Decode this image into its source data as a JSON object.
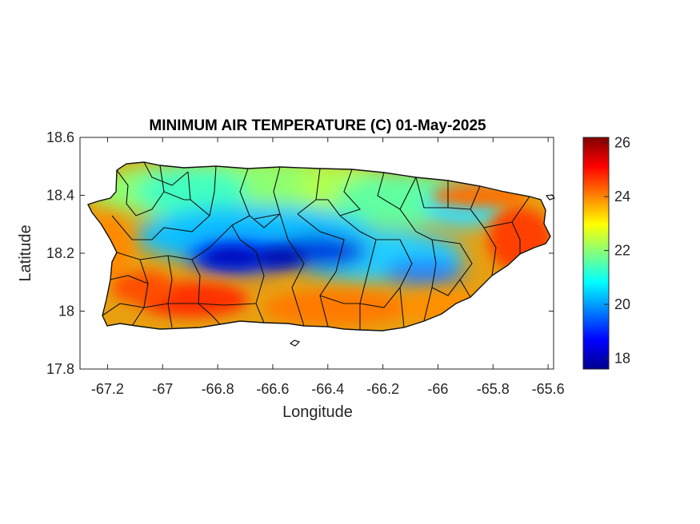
{
  "map": {
    "title": "MINIMUM AIR TEMPERATURE (C) 01-May-2025",
    "xlabel": "Longitude",
    "ylabel": "Latitude",
    "xlim": [
      -67.3,
      -65.58
    ],
    "ylim": [
      17.8,
      18.6
    ],
    "xticks": [
      -67.2,
      -67,
      -66.8,
      -66.6,
      -66.4,
      -66.2,
      -66,
      -65.8,
      -65.6
    ],
    "yticks": [
      17.8,
      18,
      18.2,
      18.4,
      18.6
    ],
    "region": "Puerto Rico",
    "colormap": "jet",
    "colorbar": {
      "range": [
        17.6,
        26.2
      ],
      "ticks": [
        18,
        20,
        22,
        24,
        26
      ]
    },
    "temperature_zones": [
      {
        "area": "north coast",
        "value": 22
      },
      {
        "area": "central mountains",
        "value": 18
      },
      {
        "area": "south coast",
        "value": 25.5
      },
      {
        "area": "northeast coast",
        "value": 25
      },
      {
        "area": "east coast",
        "value": 24.5
      }
    ]
  }
}
